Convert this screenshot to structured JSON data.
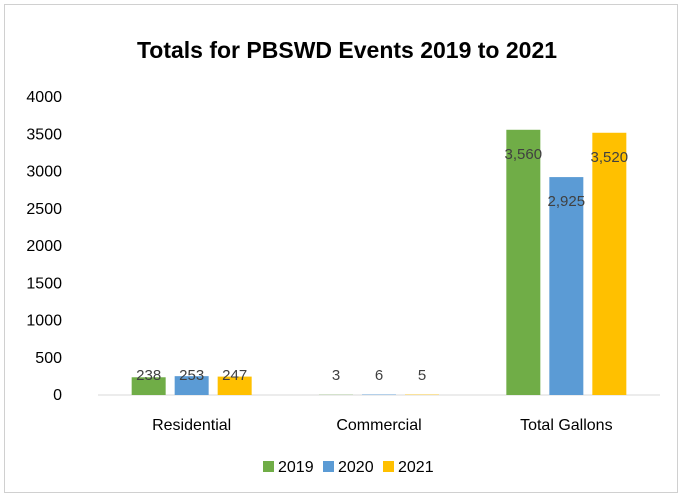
{
  "chart_data": {
    "type": "bar",
    "title": "Totals for PBSWD Events 2019 to 2021",
    "categories": [
      "Residential",
      "Commercial",
      "Total Gallons"
    ],
    "series": [
      {
        "name": "2019",
        "color": "#70AD47",
        "values": [
          238,
          3,
          3560
        ],
        "labels": [
          "238",
          "3",
          "3,560"
        ]
      },
      {
        "name": "2020",
        "color": "#5B9BD5",
        "values": [
          253,
          6,
          2925
        ],
        "labels": [
          "253",
          "6",
          "2,925"
        ]
      },
      {
        "name": "2021",
        "color": "#FFC000",
        "values": [
          247,
          5,
          3520
        ],
        "labels": [
          "247",
          "5",
          "3,520"
        ]
      }
    ],
    "ylim": [
      0,
      4000
    ],
    "yticks": [
      0,
      500,
      1000,
      1500,
      2000,
      2500,
      3000,
      3500,
      4000
    ],
    "grid": false,
    "legend": "bottom"
  }
}
